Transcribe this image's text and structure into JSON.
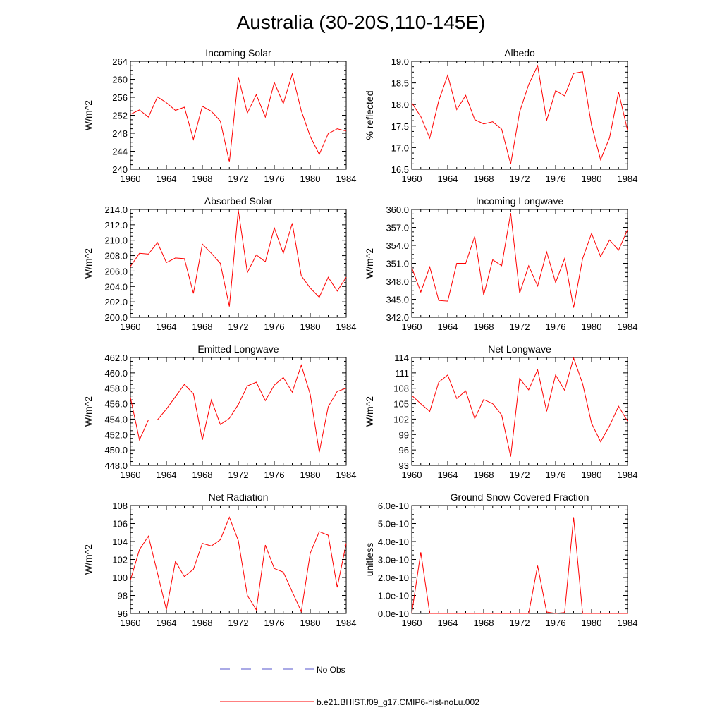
{
  "title": "Australia (30-20S,110-145E)",
  "legend": {
    "items": [
      {
        "label": "No Obs",
        "color": "#5555cc",
        "dash": true
      },
      {
        "label": "b.e21.BHIST.f09_g17.CMIP6-hist-noLu.002",
        "color": "#ff0000",
        "dash": false
      }
    ]
  },
  "series_color": "#ff0000",
  "chart_data": [
    {
      "type": "line",
      "title": "Incoming Solar",
      "ylabel": "W/m^2",
      "ylim": [
        240,
        264
      ],
      "yticks": [
        "240",
        "244",
        "248",
        "252",
        "256",
        "260",
        "264"
      ],
      "xlim": [
        1960,
        1984
      ],
      "xticks": [
        "1960",
        "1964",
        "1968",
        "1972",
        "1976",
        "1980",
        "1984"
      ],
      "x": [
        1960,
        1961,
        1962,
        1963,
        1964,
        1965,
        1966,
        1967,
        1968,
        1969,
        1970,
        1971,
        1972,
        1973,
        1974,
        1975,
        1976,
        1977,
        1978,
        1979,
        1980,
        1981,
        1982,
        1983,
        1984
      ],
      "y": [
        252.2,
        253.2,
        251.6,
        256.1,
        254.8,
        253.1,
        253.8,
        246.6,
        254.0,
        252.9,
        250.7,
        241.6,
        260.5,
        252.5,
        256.6,
        251.6,
        259.3,
        254.6,
        261.2,
        253.0,
        247.3,
        243.3,
        247.9,
        249.0,
        248.5
      ]
    },
    {
      "type": "line",
      "title": "Albedo",
      "ylabel": "% reflected",
      "ylim": [
        16.5,
        19.0
      ],
      "yticks": [
        "16.5",
        "17.0",
        "17.5",
        "18.0",
        "18.5",
        "19.0"
      ],
      "xlim": [
        1960,
        1984
      ],
      "xticks": [
        "1960",
        "1964",
        "1968",
        "1972",
        "1976",
        "1980",
        "1984"
      ],
      "x": [
        1960,
        1961,
        1962,
        1963,
        1964,
        1965,
        1966,
        1967,
        1968,
        1969,
        1970,
        1971,
        1972,
        1973,
        1974,
        1975,
        1976,
        1977,
        1978,
        1979,
        1980,
        1981,
        1982,
        1983,
        1984
      ],
      "y": [
        18.04,
        17.72,
        17.22,
        18.09,
        18.68,
        17.88,
        18.21,
        17.65,
        17.55,
        17.6,
        17.43,
        16.62,
        17.83,
        18.46,
        18.9,
        17.63,
        18.32,
        18.2,
        18.72,
        18.76,
        17.52,
        16.72,
        17.23,
        18.29,
        17.4
      ]
    },
    {
      "type": "line",
      "title": "Absorbed Solar",
      "ylabel": "W/m^2",
      "ylim": [
        200.0,
        214.0
      ],
      "yticks": [
        "200.0",
        "202.0",
        "204.0",
        "206.0",
        "208.0",
        "210.0",
        "212.0",
        "214.0"
      ],
      "xlim": [
        1960,
        1984
      ],
      "xticks": [
        "1960",
        "1964",
        "1968",
        "1972",
        "1976",
        "1980",
        "1984"
      ],
      "x": [
        1960,
        1961,
        1962,
        1963,
        1964,
        1965,
        1966,
        1967,
        1968,
        1969,
        1970,
        1971,
        1972,
        1973,
        1974,
        1975,
        1976,
        1977,
        1978,
        1979,
        1980,
        1981,
        1982,
        1983,
        1984
      ],
      "y": [
        206.6,
        208.3,
        208.2,
        209.7,
        207.1,
        207.7,
        207.6,
        203.1,
        209.5,
        208.3,
        207.0,
        201.4,
        213.9,
        205.8,
        208.1,
        207.2,
        211.6,
        208.3,
        212.2,
        205.4,
        203.8,
        202.6,
        205.2,
        203.4,
        205.2
      ]
    },
    {
      "type": "line",
      "title": "Incoming Longwave",
      "ylabel": "W/m^2",
      "ylim": [
        342.0,
        360.0
      ],
      "yticks": [
        "342.0",
        "345.0",
        "348.0",
        "351.0",
        "354.0",
        "357.0",
        "360.0"
      ],
      "xlim": [
        1960,
        1984
      ],
      "xticks": [
        "1960",
        "1964",
        "1968",
        "1972",
        "1976",
        "1980",
        "1984"
      ],
      "x": [
        1960,
        1961,
        1962,
        1963,
        1964,
        1965,
        1966,
        1967,
        1968,
        1969,
        1970,
        1971,
        1972,
        1973,
        1974,
        1975,
        1976,
        1977,
        1978,
        1979,
        1980,
        1981,
        1982,
        1983,
        1984
      ],
      "y": [
        350.3,
        346.2,
        350.4,
        344.8,
        344.7,
        351.0,
        351.0,
        355.5,
        345.7,
        351.6,
        350.6,
        359.4,
        346.0,
        350.6,
        347.2,
        352.9,
        347.8,
        351.8,
        343.6,
        351.8,
        356.0,
        352.1,
        354.9,
        353.2,
        356.6
      ]
    },
    {
      "type": "line",
      "title": "Emitted Longwave",
      "ylabel": "W/m^2",
      "ylim": [
        448.0,
        462.0
      ],
      "yticks": [
        "448.0",
        "450.0",
        "452.0",
        "454.0",
        "456.0",
        "458.0",
        "460.0",
        "462.0"
      ],
      "xlim": [
        1960,
        1984
      ],
      "xticks": [
        "1960",
        "1964",
        "1968",
        "1972",
        "1976",
        "1980",
        "1984"
      ],
      "x": [
        1960,
        1961,
        1962,
        1963,
        1964,
        1965,
        1966,
        1967,
        1968,
        1969,
        1970,
        1971,
        1972,
        1973,
        1974,
        1975,
        1976,
        1977,
        1978,
        1979,
        1980,
        1981,
        1982,
        1983,
        1984
      ],
      "y": [
        456.8,
        451.3,
        453.9,
        453.9,
        455.3,
        456.9,
        458.5,
        457.3,
        451.3,
        456.5,
        453.3,
        454.1,
        455.9,
        458.3,
        458.8,
        456.4,
        458.4,
        459.4,
        457.5,
        461.0,
        457.2,
        449.7,
        455.6,
        457.6,
        458.0
      ]
    },
    {
      "type": "line",
      "title": "Net Longwave",
      "ylabel": "W/m^2",
      "ylim": [
        93,
        114
      ],
      "yticks": [
        "93",
        "96",
        "99",
        "102",
        "105",
        "108",
        "111",
        "114"
      ],
      "xlim": [
        1960,
        1984
      ],
      "xticks": [
        "1960",
        "1964",
        "1968",
        "1972",
        "1976",
        "1980",
        "1984"
      ],
      "x": [
        1960,
        1961,
        1962,
        1963,
        1964,
        1965,
        1966,
        1967,
        1968,
        1969,
        1970,
        1971,
        1972,
        1973,
        1974,
        1975,
        1976,
        1977,
        1978,
        1979,
        1980,
        1981,
        1982,
        1983,
        1984
      ],
      "y": [
        106.6,
        105.0,
        103.5,
        109.2,
        110.6,
        106.0,
        107.5,
        102.1,
        105.8,
        105.0,
        102.8,
        94.7,
        109.9,
        107.7,
        111.6,
        103.5,
        110.6,
        107.6,
        113.9,
        108.9,
        101.2,
        97.6,
        100.7,
        104.5,
        101.6
      ]
    },
    {
      "type": "line",
      "title": "Net Radiation",
      "ylabel": "W/m^2",
      "ylim": [
        96,
        108
      ],
      "yticks": [
        "96",
        "98",
        "100",
        "102",
        "104",
        "106",
        "108"
      ],
      "xlim": [
        1960,
        1984
      ],
      "xticks": [
        "1960",
        "1964",
        "1968",
        "1972",
        "1976",
        "1980",
        "1984"
      ],
      "x": [
        1960,
        1961,
        1962,
        1963,
        1964,
        1965,
        1966,
        1967,
        1968,
        1969,
        1970,
        1971,
        1972,
        1973,
        1974,
        1975,
        1976,
        1977,
        1978,
        1979,
        1980,
        1981,
        1982,
        1983,
        1984
      ],
      "y": [
        99.7,
        103.1,
        104.6,
        100.5,
        96.4,
        101.8,
        100.1,
        100.9,
        103.8,
        103.5,
        104.2,
        106.7,
        104.1,
        98.0,
        96.4,
        103.6,
        101.0,
        100.6,
        98.4,
        96.2,
        102.7,
        105.1,
        104.7,
        98.9,
        103.8
      ]
    },
    {
      "type": "line",
      "title": "Ground Snow Covered Fraction",
      "ylabel": "unitless",
      "ylim": [
        0,
        6e-10
      ],
      "yticks": [
        "0.0e-10",
        "1.0e-10",
        "2.0e-10",
        "3.0e-10",
        "4.0e-10",
        "5.0e-10",
        "6.0e-10"
      ],
      "xlim": [
        1960,
        1984
      ],
      "xticks": [
        "1960",
        "1964",
        "1968",
        "1972",
        "1976",
        "1980",
        "1984"
      ],
      "x": [
        1960,
        1961,
        1962,
        1963,
        1964,
        1965,
        1966,
        1967,
        1968,
        1969,
        1970,
        1971,
        1972,
        1973,
        1974,
        1975,
        1976,
        1977,
        1978,
        1979,
        1980,
        1981,
        1982,
        1983,
        1984
      ],
      "y": [
        0,
        3.4e-10,
        0,
        0,
        0,
        0,
        0,
        0,
        0,
        0,
        0,
        0,
        0,
        0,
        2.65e-10,
        8e-12,
        0,
        5e-12,
        5.35e-10,
        0,
        0,
        0,
        0,
        0,
        0
      ]
    }
  ]
}
